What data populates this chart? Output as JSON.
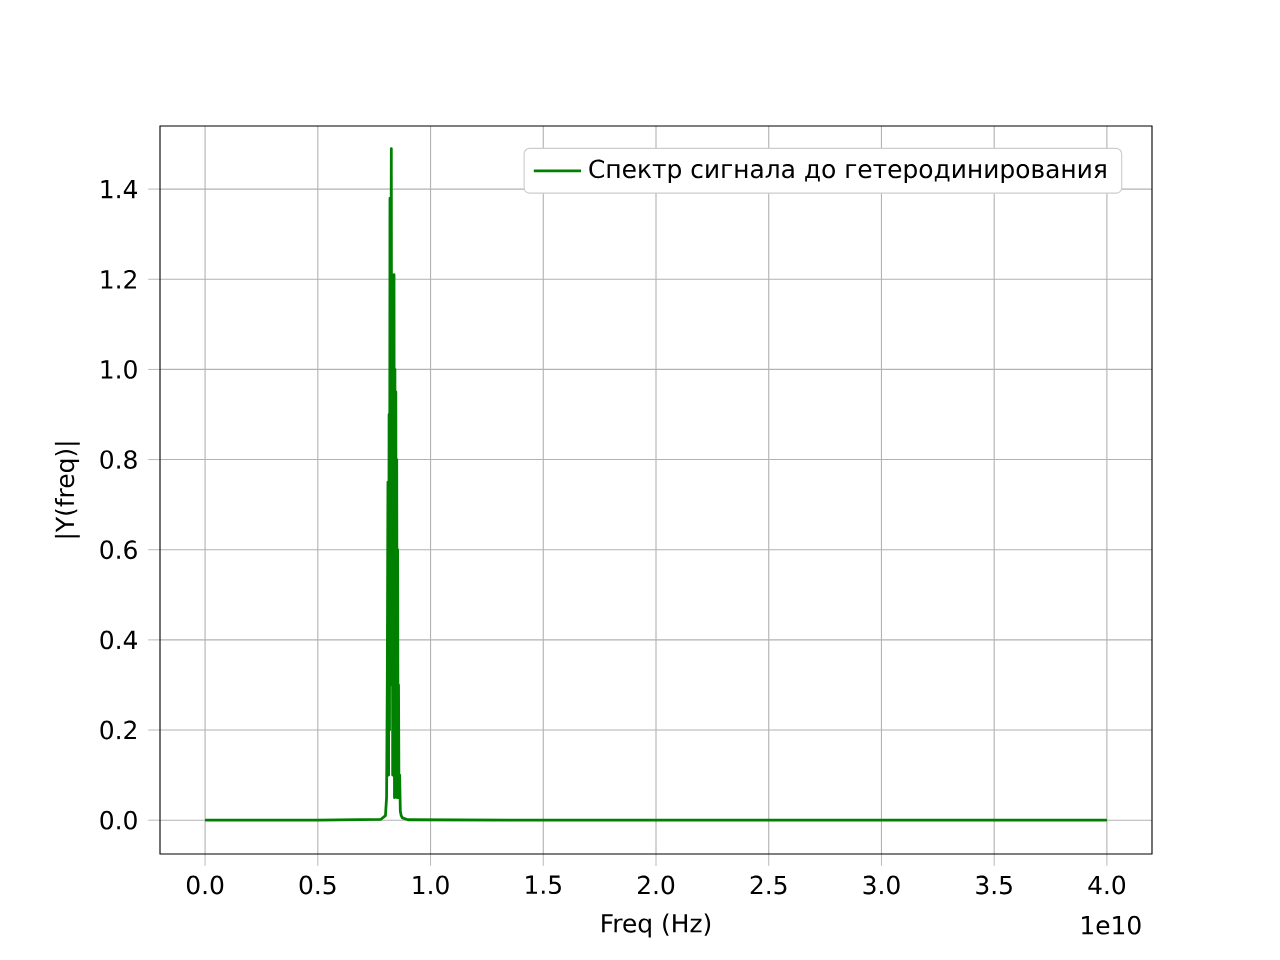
{
  "chart_data": {
    "type": "line",
    "xlabel": "Freq (Hz)",
    "ylabel": "|Y(freq)|",
    "xlim": [
      -0.2,
      4.2
    ],
    "ylim": [
      -0.075,
      1.54
    ],
    "xticks": [
      {
        "value": 0,
        "label": "0.0"
      },
      0.5,
      {
        "value": 1,
        "label": "1.0"
      },
      1.5,
      {
        "value": 2,
        "label": "2.0"
      },
      2.5,
      {
        "value": 3,
        "label": "3.0"
      },
      3.5,
      {
        "value": 4,
        "label": "4.0"
      }
    ],
    "yticks": [
      {
        "value": 0,
        "label": "0.0"
      },
      0.2,
      0.4,
      0.6,
      0.8,
      {
        "value": 1,
        "label": "1.0"
      },
      1.2,
      1.4
    ],
    "grid": true,
    "legend": "top right",
    "annotations": [
      "1e10"
    ],
    "series": [
      {
        "name": "Спектр сигнала до гетеродинирования",
        "color": "#008000",
        "x": [
          0,
          0.5,
          0.78,
          0.8,
          0.805,
          0.808,
          0.811,
          0.814,
          0.816,
          0.818,
          0.82,
          0.822,
          0.824,
          0.826,
          0.828,
          0.83,
          0.832,
          0.834,
          0.836,
          0.838,
          0.84,
          0.842,
          0.844,
          0.846,
          0.848,
          0.85,
          0.852,
          0.854,
          0.856,
          0.858,
          0.86,
          0.863,
          0.866,
          0.87,
          0.875,
          0.9,
          1.5,
          2.5,
          4.0
        ],
        "values": [
          0,
          0,
          0.002,
          0.01,
          0.05,
          0.3,
          0.75,
          0.1,
          0.9,
          0.2,
          1.38,
          0.3,
          1.1,
          1.49,
          0.4,
          1.05,
          0.1,
          0.95,
          0.3,
          1.21,
          0.05,
          1.0,
          0.2,
          0.95,
          0.1,
          0.8,
          0.05,
          0.6,
          0.1,
          0.3,
          0.05,
          0.1,
          0.02,
          0.01,
          0.005,
          0.001,
          0,
          0,
          0
        ]
      }
    ]
  }
}
